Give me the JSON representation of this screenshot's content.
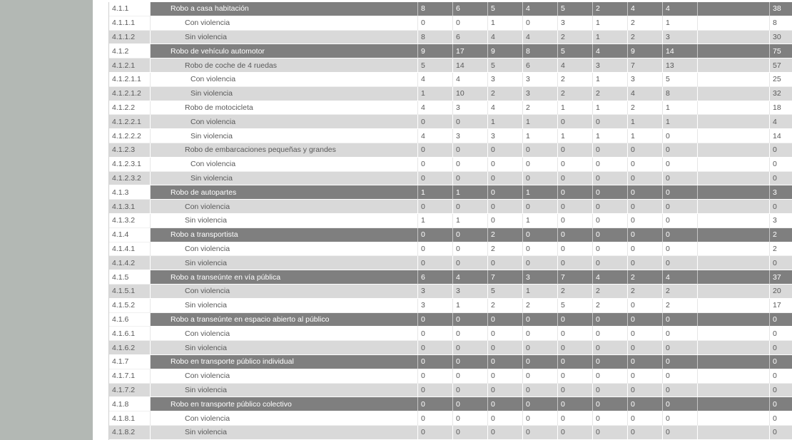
{
  "colors": {
    "side_panel": "#b3b8b4",
    "category_row_bg": "#7f7f7f",
    "band_row_bg": "#d9d9d9",
    "white_row_bg": "#ffffff",
    "text": "#595959",
    "category_text": "#ffffff"
  },
  "table": {
    "rows": [
      {
        "code": "4.1.1",
        "label": "Robo a casa habitación",
        "shade": "dark",
        "values": [
          8,
          6,
          5,
          4,
          5,
          2,
          4,
          4
        ],
        "total": 38
      },
      {
        "code": "4.1.1.1",
        "label": "Con violencia",
        "shade": "white",
        "values": [
          0,
          0,
          1,
          0,
          3,
          1,
          2,
          1
        ],
        "total": 8
      },
      {
        "code": "4.1.1.2",
        "label": "Sin violencia",
        "shade": "gray",
        "values": [
          8,
          6,
          4,
          4,
          2,
          1,
          2,
          3
        ],
        "total": 30
      },
      {
        "code": "4.1.2",
        "label": "Robo de vehículo automotor",
        "shade": "dark",
        "values": [
          9,
          17,
          9,
          8,
          5,
          4,
          9,
          14
        ],
        "total": 75
      },
      {
        "code": "4.1.2.1",
        "label": "Robo de coche de 4 ruedas",
        "shade": "gray",
        "values": [
          5,
          14,
          5,
          6,
          4,
          3,
          7,
          13
        ],
        "total": 57
      },
      {
        "code": "4.1.2.1.1",
        "label": "Con violencia",
        "shade": "white",
        "values": [
          4,
          4,
          3,
          3,
          2,
          1,
          3,
          5
        ],
        "total": 25
      },
      {
        "code": "4.1.2.1.2",
        "label": "Sin violencia",
        "shade": "gray",
        "values": [
          1,
          10,
          2,
          3,
          2,
          2,
          4,
          8
        ],
        "total": 32
      },
      {
        "code": "4.1.2.2",
        "label": "Robo de motocicleta",
        "shade": "white",
        "values": [
          4,
          3,
          4,
          2,
          1,
          1,
          2,
          1
        ],
        "total": 18
      },
      {
        "code": "4.1.2.2.1",
        "label": "Con violencia",
        "shade": "gray",
        "values": [
          0,
          0,
          1,
          1,
          0,
          0,
          1,
          1
        ],
        "total": 4
      },
      {
        "code": "4.1.2.2.2",
        "label": "Sin violencia",
        "shade": "white",
        "values": [
          4,
          3,
          3,
          1,
          1,
          1,
          1,
          0
        ],
        "total": 14
      },
      {
        "code": "4.1.2.3",
        "label": "Robo de embarcaciones pequeñas y grandes",
        "shade": "gray",
        "values": [
          0,
          0,
          0,
          0,
          0,
          0,
          0,
          0
        ],
        "total": 0
      },
      {
        "code": "4.1.2.3.1",
        "label": "Con violencia",
        "shade": "white",
        "values": [
          0,
          0,
          0,
          0,
          0,
          0,
          0,
          0
        ],
        "total": 0
      },
      {
        "code": "4.1.2.3.2",
        "label": "Sin violencia",
        "shade": "gray",
        "values": [
          0,
          0,
          0,
          0,
          0,
          0,
          0,
          0
        ],
        "total": 0
      },
      {
        "code": "4.1.3",
        "label": "Robo de autopartes",
        "shade": "dark",
        "values": [
          1,
          1,
          0,
          1,
          0,
          0,
          0,
          0
        ],
        "total": 3
      },
      {
        "code": "4.1.3.1",
        "label": "Con violencia",
        "shade": "gray",
        "values": [
          0,
          0,
          0,
          0,
          0,
          0,
          0,
          0
        ],
        "total": 0
      },
      {
        "code": "4.1.3.2",
        "label": "Sin violencia",
        "shade": "white",
        "values": [
          1,
          1,
          0,
          1,
          0,
          0,
          0,
          0
        ],
        "total": 3
      },
      {
        "code": "4.1.4",
        "label": "Robo a transportista",
        "shade": "dark",
        "values": [
          0,
          0,
          2,
          0,
          0,
          0,
          0,
          0
        ],
        "total": 2
      },
      {
        "code": "4.1.4.1",
        "label": "Con violencia",
        "shade": "white",
        "values": [
          0,
          0,
          2,
          0,
          0,
          0,
          0,
          0
        ],
        "total": 2
      },
      {
        "code": "4.1.4.2",
        "label": "Sin violencia",
        "shade": "gray",
        "values": [
          0,
          0,
          0,
          0,
          0,
          0,
          0,
          0
        ],
        "total": 0
      },
      {
        "code": "4.1.5",
        "label": "Robo a transeúnte en vía pública",
        "shade": "dark",
        "values": [
          6,
          4,
          7,
          3,
          7,
          4,
          2,
          4
        ],
        "total": 37
      },
      {
        "code": "4.1.5.1",
        "label": "Con violencia",
        "shade": "gray",
        "values": [
          3,
          3,
          5,
          1,
          2,
          2,
          2,
          2
        ],
        "total": 20
      },
      {
        "code": "4.1.5.2",
        "label": "Sin violencia",
        "shade": "white",
        "values": [
          3,
          1,
          2,
          2,
          5,
          2,
          0,
          2
        ],
        "total": 17
      },
      {
        "code": "4.1.6",
        "label": "Robo a transeúnte en espacio abierto al público",
        "shade": "dark",
        "values": [
          0,
          0,
          0,
          0,
          0,
          0,
          0,
          0
        ],
        "total": 0
      },
      {
        "code": "4.1.6.1",
        "label": "Con violencia",
        "shade": "white",
        "values": [
          0,
          0,
          0,
          0,
          0,
          0,
          0,
          0
        ],
        "total": 0
      },
      {
        "code": "4.1.6.2",
        "label": "Sin violencia",
        "shade": "gray",
        "values": [
          0,
          0,
          0,
          0,
          0,
          0,
          0,
          0
        ],
        "total": 0
      },
      {
        "code": "4.1.7",
        "label": "Robo en transporte público individual",
        "shade": "dark",
        "values": [
          0,
          0,
          0,
          0,
          0,
          0,
          0,
          0
        ],
        "total": 0
      },
      {
        "code": "4.1.7.1",
        "label": "Con violencia",
        "shade": "white",
        "values": [
          0,
          0,
          0,
          0,
          0,
          0,
          0,
          0
        ],
        "total": 0
      },
      {
        "code": "4.1.7.2",
        "label": "Sin violencia",
        "shade": "gray",
        "values": [
          0,
          0,
          0,
          0,
          0,
          0,
          0,
          0
        ],
        "total": 0
      },
      {
        "code": "4.1.8",
        "label": "Robo en transporte público colectivo",
        "shade": "dark",
        "values": [
          0,
          0,
          0,
          0,
          0,
          0,
          0,
          0
        ],
        "total": 0
      },
      {
        "code": "4.1.8.1",
        "label": "Con violencia",
        "shade": "white",
        "values": [
          0,
          0,
          0,
          0,
          0,
          0,
          0,
          0
        ],
        "total": 0
      },
      {
        "code": "4.1.8.2",
        "label": "Sin violencia",
        "shade": "gray",
        "values": [
          0,
          0,
          0,
          0,
          0,
          0,
          0,
          0
        ],
        "total": 0
      }
    ]
  }
}
